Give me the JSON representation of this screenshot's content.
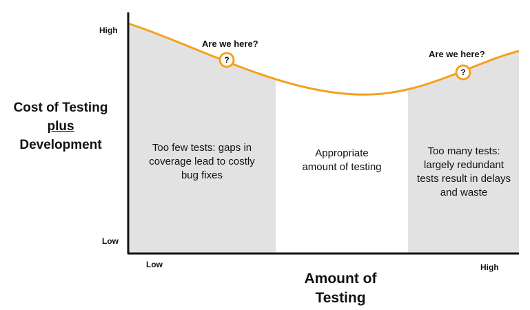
{
  "y_axis": {
    "label_line1": "Cost of Testing",
    "label_line2": "plus",
    "label_line3": "Development",
    "tick_high": "High",
    "tick_low": "Low"
  },
  "x_axis": {
    "label_line1": "Amount of",
    "label_line2": "Testing",
    "tick_low": "Low",
    "tick_high": "High"
  },
  "regions": [
    {
      "name": "too-few",
      "text": "Too few tests: gaps in coverage lead to costly bug fixes",
      "shaded": true
    },
    {
      "name": "appropriate",
      "text": "Appropriate amount of testing",
      "shaded": false
    },
    {
      "name": "too-many",
      "text": "Too many tests: largely redundant tests result in delays and waste",
      "shaded": true
    }
  ],
  "callouts": [
    {
      "text": "Are we here?",
      "marker": "?"
    },
    {
      "text": "Are we here?",
      "marker": "?"
    }
  ],
  "colors": {
    "curve": "#F5A11C",
    "shade": "#E2E2E2",
    "axis": "#111111"
  }
}
